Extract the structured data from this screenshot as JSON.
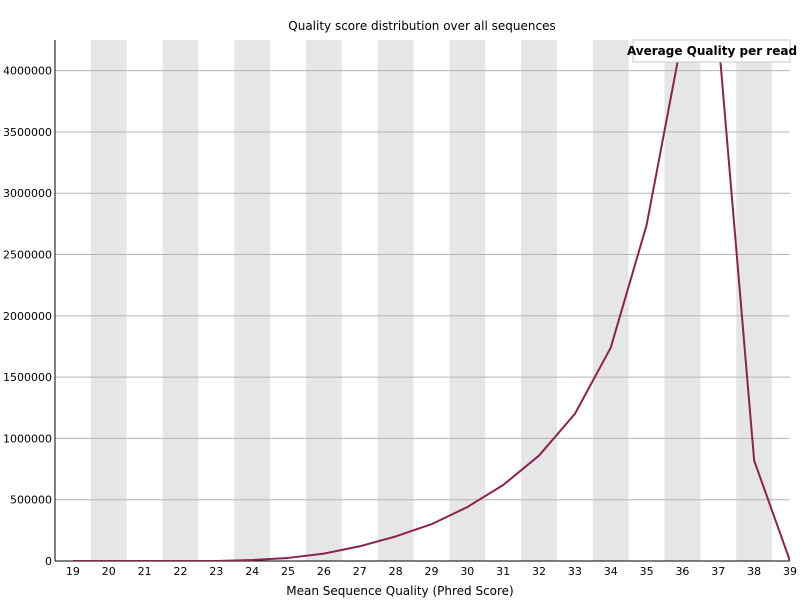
{
  "chart_data": {
    "type": "line",
    "title": "Quality score distribution over all sequences",
    "xlabel": "Mean Sequence Quality (Phred Score)",
    "ylabel": "",
    "x": [
      19,
      20,
      21,
      22,
      23,
      24,
      25,
      26,
      27,
      28,
      29,
      30,
      31,
      32,
      33,
      34,
      35,
      36,
      37,
      38,
      39
    ],
    "x_ticks": [
      "19",
      "20",
      "21",
      "22",
      "23",
      "24",
      "25",
      "26",
      "27",
      "28",
      "29",
      "30",
      "31",
      "32",
      "33",
      "34",
      "35",
      "36",
      "37",
      "38",
      "39"
    ],
    "ylim": [
      0,
      4250000
    ],
    "y_ticks": [
      "0",
      "500000",
      "1000000",
      "1500000",
      "2000000",
      "2500000",
      "3000000",
      "3500000",
      "4000000"
    ],
    "y_tick_values": [
      0,
      500000,
      1000000,
      1500000,
      2000000,
      2500000,
      3000000,
      3500000,
      4000000
    ],
    "series": [
      {
        "name": "Average Quality per read",
        "color": "#8b2252",
        "values": [
          0,
          0,
          0,
          0,
          0,
          8000,
          25000,
          60000,
          120000,
          200000,
          300000,
          440000,
          620000,
          860000,
          1200000,
          1740000,
          2740000,
          4280000,
          4280000,
          820000,
          0
        ]
      }
    ],
    "grid": true,
    "legend_position": "top-right",
    "band_color": "#e6e6e6"
  }
}
